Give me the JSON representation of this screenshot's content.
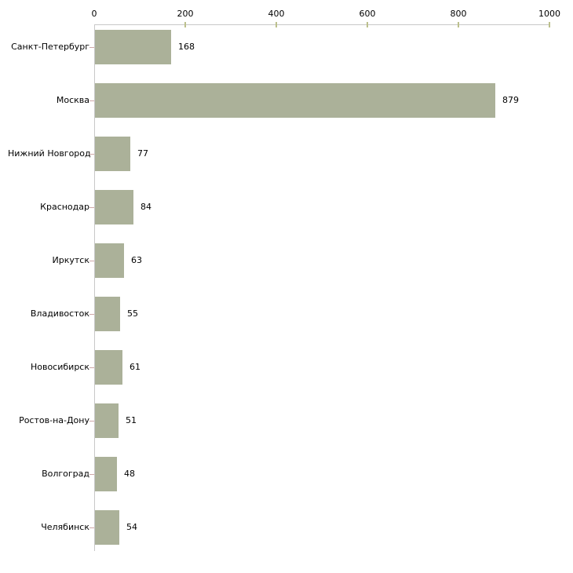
{
  "chart_data": {
    "type": "bar",
    "orientation": "horizontal",
    "title": "",
    "xlabel": "",
    "ylabel": "",
    "grid": false,
    "legend": null,
    "categories": [
      "Санкт-Петербург",
      "Москва",
      "Нижний Новгород",
      "Краснодар",
      "Иркутск",
      "Владивосток",
      "Новосибирск",
      "Ростов-на-Дону",
      "Волгоград",
      "Челябинск"
    ],
    "values": [
      168,
      879,
      77,
      84,
      63,
      55,
      61,
      51,
      48,
      54
    ],
    "value_labels": [
      "168",
      "879",
      "77",
      "84",
      "63",
      "55",
      "61",
      "51",
      "48",
      "54"
    ],
    "xlim": [
      0,
      1000
    ],
    "x_ticks": [
      0,
      200,
      400,
      600,
      800,
      1000
    ],
    "x_tick_labels": [
      "0",
      "200",
      "400",
      "600",
      "800",
      "1000"
    ],
    "colors": {
      "bar": "#abb199",
      "axis_line": "#c8c8c8",
      "x_tick_mark": "#bcc08c",
      "y_tick_mark": "#cfa8a8",
      "text": "#000000",
      "background": "#ffffff"
    }
  }
}
